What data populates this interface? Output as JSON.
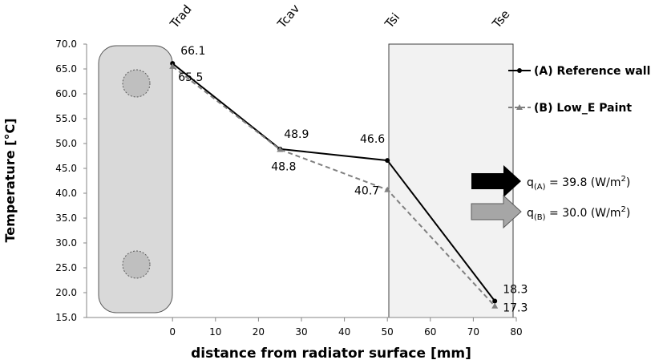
{
  "chart_data": {
    "type": "line",
    "y_label": "Temperature [°C]",
    "x_label": "distance from radiator surface [mm]",
    "position_labels": [
      "Trad",
      "Tcav",
      "Tsi",
      "Tse"
    ],
    "x": [
      0,
      25,
      50,
      75
    ],
    "series": [
      {
        "name": "(A) Reference wall",
        "color": "#000000",
        "dashed": false,
        "marker": "circle",
        "values": [
          66.1,
          48.9,
          46.6,
          18.3
        ]
      },
      {
        "name": "(B) Low_E Paint",
        "color": "#808080",
        "dashed": true,
        "marker": "triangle",
        "values": [
          65.5,
          48.8,
          40.7,
          17.3
        ]
      }
    ],
    "xlim": [
      -20,
      80
    ],
    "xticks": [
      0,
      10,
      20,
      30,
      40,
      50,
      60,
      70,
      80
    ],
    "ylim": [
      15,
      70
    ],
    "yticks": [
      {
        "value": 15,
        "label": "15.0"
      },
      {
        "value": 20,
        "label": "20.0"
      },
      {
        "value": 25,
        "label": "25.0"
      },
      {
        "value": 30,
        "label": "30.0"
      },
      {
        "value": 35,
        "label": "35.0"
      },
      {
        "value": 40,
        "label": "40.0"
      },
      {
        "value": 45,
        "label": "45.0"
      },
      {
        "value": 50,
        "label": "50.0"
      },
      {
        "value": 55,
        "label": "55.0"
      },
      {
        "value": 60,
        "label": "60.0"
      },
      {
        "value": 65,
        "label": "65.0"
      },
      {
        "value": 70,
        "label": "70.0"
      }
    ],
    "grid": false,
    "legend": "right",
    "annotations": [
      {
        "symbol": "q",
        "subscript": "(A)",
        "text": " = 39.8 (W/m",
        "superscript": "2",
        "suffix": ")",
        "color": "#000000"
      },
      {
        "symbol": "q",
        "subscript": "(B)",
        "text": " = 30.0 (W/m",
        "superscript": "2",
        "suffix": ")",
        "color": "#a6a6a6"
      }
    ]
  }
}
